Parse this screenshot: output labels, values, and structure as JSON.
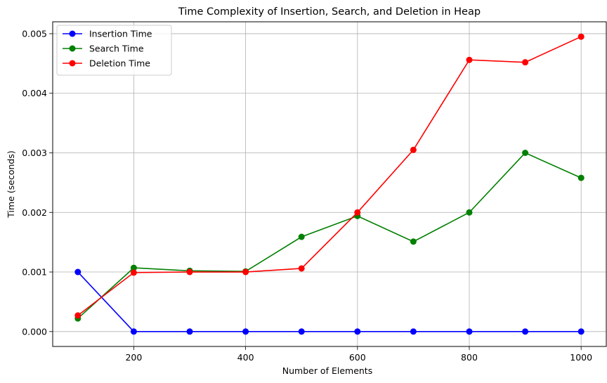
{
  "chart_data": {
    "type": "line",
    "title": "Time Complexity of Insertion, Search, and Deletion in Heap",
    "xlabel": "Number of Elements",
    "ylabel": "Time (seconds)",
    "x": [
      100,
      200,
      300,
      400,
      500,
      600,
      700,
      800,
      900,
      1000
    ],
    "xlim": [
      55,
      1045
    ],
    "ylim": [
      -0.00025,
      0.0052
    ],
    "xticks": [
      200,
      400,
      600,
      800,
      1000
    ],
    "yticks": [
      0.0,
      0.001,
      0.002,
      0.003,
      0.004,
      0.005
    ],
    "ytick_labels": [
      "0.000",
      "0.001",
      "0.002",
      "0.003",
      "0.004",
      "0.005"
    ],
    "grid": true,
    "legend_position": "top-left",
    "series": [
      {
        "name": "Insertion Time",
        "color": "#0000ff",
        "values": [
          0.001,
          0,
          0,
          0,
          0,
          0,
          0,
          0,
          0,
          0
        ]
      },
      {
        "name": "Search Time",
        "color": "#008000",
        "values": [
          0.00022,
          0.00107,
          0.00102,
          0.00101,
          0.00159,
          0.00194,
          0.00151,
          0.002,
          0.003,
          0.00258
        ]
      },
      {
        "name": "Deletion Time",
        "color": "#ff0000",
        "values": [
          0.00027,
          0.00099,
          0.001,
          0.001,
          0.00106,
          0.002,
          0.00305,
          0.00456,
          0.00452,
          0.00495
        ]
      }
    ]
  }
}
